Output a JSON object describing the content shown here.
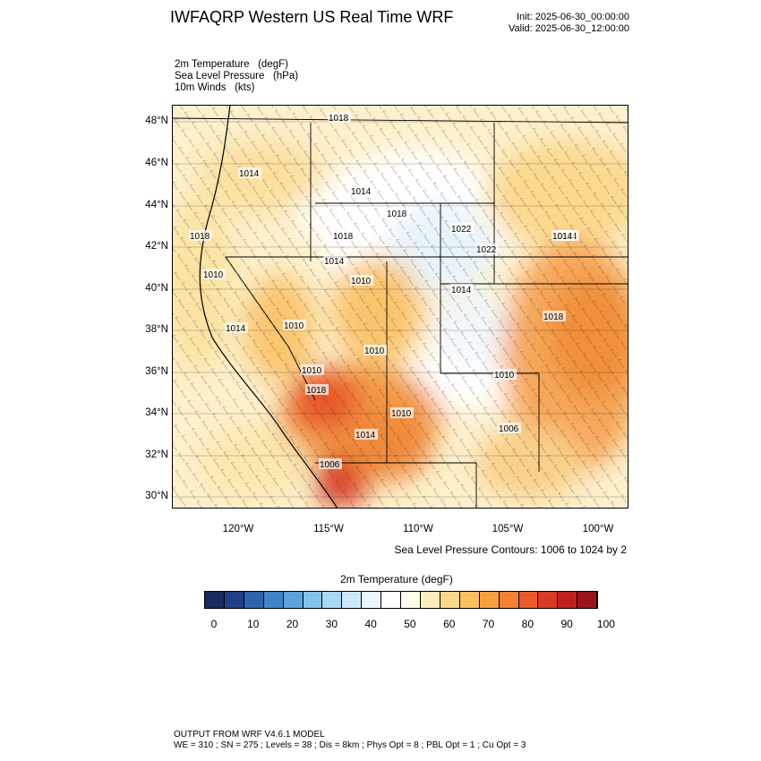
{
  "header": {
    "title": "IWFAQRP Western US Real Time WRF",
    "init": "Init: 2025-06-30_00:00:00",
    "valid": "Valid: 2025-06-30_12:00:00"
  },
  "fields": {
    "temperature": "2m Temperature   (degF)",
    "pressure": "Sea Level Pressure   (hPa)",
    "winds": "10m Winds   (kts)"
  },
  "map": {
    "lat_labels": [
      "48°N",
      "46°N",
      "44°N",
      "42°N",
      "40°N",
      "38°N",
      "36°N",
      "34°N",
      "32°N",
      "30°N"
    ],
    "lon_labels": [
      "120°W",
      "115°W",
      "110°W",
      "105°W",
      "100°W"
    ],
    "isobar_labels": [
      "1018",
      "1014",
      "1014",
      "1018",
      "1018",
      "1022",
      "1014",
      "1022",
      "1018",
      "1014",
      "1010",
      "1010",
      "1014",
      "1018",
      "1014",
      "1010",
      "1010",
      "1010",
      "1010",
      "1018",
      "1010",
      "1006",
      "1014",
      "1006",
      "1014"
    ]
  },
  "contour_note": "Sea Level Pressure Contours: 1006 to 1024 by 2",
  "colorbar": {
    "title": "2m Temperature  (degF)",
    "labels": [
      "0",
      "10",
      "20",
      "30",
      "40",
      "50",
      "60",
      "70",
      "80",
      "90",
      "100"
    ],
    "colors": [
      "#1a2a5e",
      "#213f86",
      "#2e63ad",
      "#3f84c8",
      "#5ba3d9",
      "#84c2ea",
      "#aad8f3",
      "#cde9f9",
      "#ebf5fd",
      "#ffffff",
      "#fffbe9",
      "#fdeebc",
      "#fcd88b",
      "#fbbf5c",
      "#f8a040",
      "#f38033",
      "#e85a2a",
      "#d83a24",
      "#c0211f",
      "#991519"
    ]
  },
  "footer": {
    "line1": "OUTPUT FROM WRF V4.6.1 MODEL",
    "line2": "WE = 310 ; SN = 275 ; Levels = 38 ; Dis = 8km ; Phys Opt = 8 ; PBL Opt = 1 ; Cu Opt = 3"
  }
}
